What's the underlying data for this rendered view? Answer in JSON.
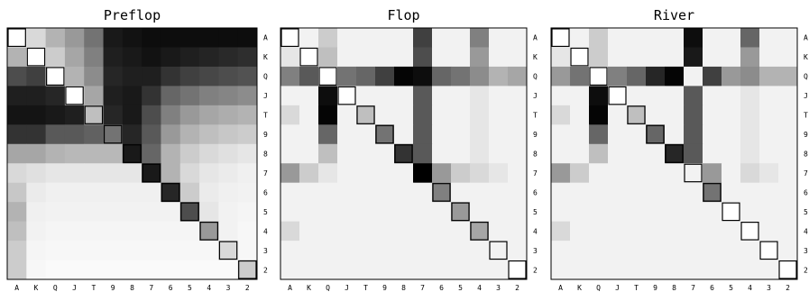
{
  "chart_data": [
    {
      "type": "heatmap",
      "title": "Preflop",
      "row_labels": [
        "A",
        "K",
        "Q",
        "J",
        "T",
        "9",
        "8",
        "7",
        "6",
        "5",
        "4",
        "3",
        "2"
      ],
      "col_labels": [
        "A",
        "K",
        "Q",
        "J",
        "T",
        "9",
        "8",
        "7",
        "6",
        "5",
        "4",
        "3",
        "2"
      ],
      "value_range": [
        0,
        1
      ],
      "colormap": "white-to-black",
      "diagonal_highlight": true,
      "values": [
        [
          0.0,
          0.15,
          0.3,
          0.4,
          0.55,
          0.9,
          0.93,
          0.95,
          0.95,
          0.95,
          0.95,
          0.95,
          0.95
        ],
        [
          0.3,
          0.0,
          0.2,
          0.35,
          0.5,
          0.88,
          0.9,
          0.93,
          0.9,
          0.88,
          0.86,
          0.84,
          0.82
        ],
        [
          0.7,
          0.75,
          0.0,
          0.3,
          0.45,
          0.85,
          0.88,
          0.88,
          0.8,
          0.75,
          0.72,
          0.7,
          0.68
        ],
        [
          0.88,
          0.88,
          0.85,
          0.0,
          0.35,
          0.88,
          0.9,
          0.8,
          0.6,
          0.55,
          0.5,
          0.48,
          0.45
        ],
        [
          0.92,
          0.92,
          0.9,
          0.88,
          0.25,
          0.85,
          0.9,
          0.7,
          0.5,
          0.4,
          0.35,
          0.32,
          0.3
        ],
        [
          0.8,
          0.8,
          0.65,
          0.65,
          0.62,
          0.55,
          0.85,
          0.65,
          0.4,
          0.3,
          0.25,
          0.22,
          0.2
        ],
        [
          0.35,
          0.35,
          0.3,
          0.28,
          0.28,
          0.28,
          0.9,
          0.6,
          0.3,
          0.2,
          0.15,
          0.12,
          0.1
        ],
        [
          0.15,
          0.12,
          0.1,
          0.1,
          0.1,
          0.1,
          0.1,
          0.9,
          0.3,
          0.15,
          0.1,
          0.08,
          0.06
        ],
        [
          0.22,
          0.08,
          0.06,
          0.06,
          0.06,
          0.06,
          0.06,
          0.06,
          0.85,
          0.2,
          0.08,
          0.06,
          0.05
        ],
        [
          0.3,
          0.06,
          0.05,
          0.05,
          0.05,
          0.05,
          0.05,
          0.05,
          0.05,
          0.7,
          0.1,
          0.05,
          0.04
        ],
        [
          0.25,
          0.05,
          0.04,
          0.04,
          0.04,
          0.04,
          0.04,
          0.04,
          0.04,
          0.04,
          0.4,
          0.05,
          0.03
        ],
        [
          0.2,
          0.04,
          0.03,
          0.03,
          0.03,
          0.03,
          0.03,
          0.03,
          0.03,
          0.03,
          0.03,
          0.15,
          0.03
        ],
        [
          0.2,
          0.03,
          0.02,
          0.02,
          0.02,
          0.02,
          0.02,
          0.02,
          0.02,
          0.02,
          0.02,
          0.02,
          0.2
        ]
      ]
    },
    {
      "type": "heatmap",
      "title": "Flop",
      "row_labels": [
        "A",
        "K",
        "Q",
        "J",
        "T",
        "9",
        "8",
        "7",
        "6",
        "5",
        "4",
        "3",
        "2"
      ],
      "col_labels": [
        "A",
        "K",
        "Q",
        "J",
        "T",
        "9",
        "8",
        "7",
        "6",
        "5",
        "4",
        "3",
        "2"
      ],
      "value_range": [
        0,
        1
      ],
      "colormap": "white-to-black",
      "diagonal_highlight": true,
      "values": [
        [
          0.0,
          0.05,
          0.2,
          0.05,
          0.05,
          0.05,
          0.05,
          0.75,
          0.05,
          0.05,
          0.5,
          0.05,
          0.05
        ],
        [
          0.1,
          0.0,
          0.25,
          0.05,
          0.05,
          0.05,
          0.05,
          0.7,
          0.05,
          0.05,
          0.4,
          0.05,
          0.05
        ],
        [
          0.5,
          0.65,
          0.0,
          0.55,
          0.6,
          0.75,
          0.98,
          0.95,
          0.6,
          0.55,
          0.45,
          0.3,
          0.35
        ],
        [
          0.05,
          0.05,
          0.95,
          0.0,
          0.05,
          0.05,
          0.05,
          0.65,
          0.05,
          0.05,
          0.1,
          0.05,
          0.05
        ],
        [
          0.15,
          0.05,
          0.98,
          0.05,
          0.25,
          0.05,
          0.05,
          0.65,
          0.05,
          0.05,
          0.1,
          0.05,
          0.05
        ],
        [
          0.05,
          0.05,
          0.6,
          0.05,
          0.05,
          0.55,
          0.05,
          0.65,
          0.05,
          0.05,
          0.1,
          0.05,
          0.05
        ],
        [
          0.05,
          0.05,
          0.25,
          0.05,
          0.05,
          0.05,
          0.8,
          0.65,
          0.05,
          0.05,
          0.1,
          0.05,
          0.05
        ],
        [
          0.4,
          0.2,
          0.1,
          0.05,
          0.05,
          0.05,
          0.05,
          1.0,
          0.4,
          0.2,
          0.15,
          0.1,
          0.05
        ],
        [
          0.05,
          0.05,
          0.05,
          0.05,
          0.05,
          0.05,
          0.05,
          0.05,
          0.5,
          0.05,
          0.05,
          0.05,
          0.05
        ],
        [
          0.05,
          0.05,
          0.05,
          0.05,
          0.05,
          0.05,
          0.05,
          0.05,
          0.05,
          0.4,
          0.05,
          0.05,
          0.05
        ],
        [
          0.15,
          0.05,
          0.05,
          0.05,
          0.05,
          0.05,
          0.05,
          0.05,
          0.05,
          0.05,
          0.35,
          0.05,
          0.05
        ],
        [
          0.05,
          0.05,
          0.05,
          0.05,
          0.05,
          0.05,
          0.05,
          0.05,
          0.05,
          0.05,
          0.05,
          0.05,
          0.05
        ],
        [
          0.05,
          0.05,
          0.05,
          0.05,
          0.05,
          0.05,
          0.05,
          0.05,
          0.05,
          0.05,
          0.05,
          0.05,
          0.0
        ]
      ]
    },
    {
      "type": "heatmap",
      "title": "River",
      "row_labels": [
        "A",
        "K",
        "Q",
        "J",
        "T",
        "9",
        "8",
        "7",
        "6",
        "5",
        "4",
        "3",
        "2"
      ],
      "col_labels": [
        "A",
        "K",
        "Q",
        "J",
        "T",
        "9",
        "8",
        "7",
        "6",
        "5",
        "4",
        "3",
        "2"
      ],
      "value_range": [
        0,
        1
      ],
      "colormap": "white-to-black",
      "diagonal_highlight": true,
      "values": [
        [
          0.0,
          0.05,
          0.2,
          0.05,
          0.05,
          0.05,
          0.05,
          0.95,
          0.05,
          0.05,
          0.6,
          0.05,
          0.05
        ],
        [
          0.1,
          0.0,
          0.2,
          0.05,
          0.05,
          0.05,
          0.05,
          0.9,
          0.05,
          0.05,
          0.4,
          0.05,
          0.05
        ],
        [
          0.4,
          0.55,
          0.0,
          0.5,
          0.6,
          0.85,
          0.98,
          0.05,
          0.75,
          0.4,
          0.45,
          0.3,
          0.3
        ],
        [
          0.05,
          0.05,
          0.95,
          0.0,
          0.05,
          0.05,
          0.05,
          0.65,
          0.05,
          0.05,
          0.1,
          0.05,
          0.05
        ],
        [
          0.15,
          0.05,
          0.98,
          0.05,
          0.25,
          0.05,
          0.05,
          0.65,
          0.05,
          0.05,
          0.1,
          0.05,
          0.05
        ],
        [
          0.05,
          0.05,
          0.6,
          0.05,
          0.05,
          0.6,
          0.05,
          0.65,
          0.05,
          0.05,
          0.1,
          0.05,
          0.05
        ],
        [
          0.05,
          0.05,
          0.25,
          0.05,
          0.05,
          0.05,
          0.85,
          0.65,
          0.05,
          0.05,
          0.1,
          0.05,
          0.05
        ],
        [
          0.4,
          0.2,
          0.05,
          0.05,
          0.05,
          0.05,
          0.05,
          0.05,
          0.4,
          0.05,
          0.15,
          0.1,
          0.05
        ],
        [
          0.05,
          0.05,
          0.05,
          0.05,
          0.05,
          0.05,
          0.05,
          0.05,
          0.55,
          0.05,
          0.05,
          0.05,
          0.05
        ],
        [
          0.05,
          0.05,
          0.05,
          0.05,
          0.05,
          0.05,
          0.05,
          0.05,
          0.05,
          0.0,
          0.05,
          0.05,
          0.05
        ],
        [
          0.15,
          0.05,
          0.05,
          0.05,
          0.05,
          0.05,
          0.05,
          0.05,
          0.05,
          0.05,
          0.0,
          0.05,
          0.05
        ],
        [
          0.05,
          0.05,
          0.05,
          0.05,
          0.05,
          0.05,
          0.05,
          0.05,
          0.05,
          0.05,
          0.05,
          0.0,
          0.05
        ],
        [
          0.05,
          0.05,
          0.05,
          0.05,
          0.05,
          0.05,
          0.05,
          0.05,
          0.05,
          0.05,
          0.05,
          0.05,
          0.0
        ]
      ]
    }
  ]
}
